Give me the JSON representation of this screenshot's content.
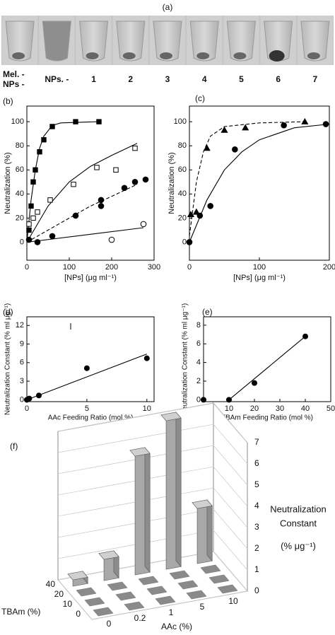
{
  "photo_panel": {
    "label": "(a)",
    "row_labels": [
      "Mel. -",
      "NPs -"
    ],
    "lane_labels": [
      "NPs. -",
      "1",
      "2",
      "3",
      "4",
      "5",
      "6",
      "7"
    ]
  },
  "chart_data": [
    {
      "type": "scatter",
      "panel_label": "(b)",
      "xlabel": "[NPs] (μg ml⁻¹)",
      "ylabel": "Neutralization (%)",
      "xlim": [
        0,
        300
      ],
      "ylim": [
        -15,
        113
      ],
      "xticks": [
        0,
        100,
        200,
        300
      ],
      "yticks": [
        0,
        20,
        40,
        60,
        80,
        100
      ],
      "series": [
        {
          "marker": "square-filled",
          "color": "#000000",
          "x": [
            5,
            10,
            15,
            20,
            30,
            40,
            60,
            115,
            170
          ],
          "values": [
            10,
            30,
            50,
            60,
            75,
            85,
            96,
            100,
            100
          ]
        },
        {
          "marker": "square-open",
          "color": "#000000",
          "x": [
            5,
            15,
            25,
            55,
            110,
            165,
            210,
            255
          ],
          "values": [
            15,
            20,
            25,
            35,
            48,
            62,
            60,
            78
          ]
        },
        {
          "marker": "circle-filled",
          "color": "#000000",
          "x": [
            5,
            25,
            60,
            115,
            175,
            175,
            230,
            255,
            280
          ],
          "values": [
            2,
            0,
            5,
            22,
            30,
            35,
            45,
            50,
            52
          ]
        },
        {
          "marker": "circle-open",
          "color": "#000000",
          "x": [
            200,
            275
          ],
          "values": [
            2,
            15
          ]
        }
      ],
      "fits": [
        {
          "dash": false,
          "x": [
            0,
            10,
            20,
            30,
            40,
            60,
            80,
            170
          ],
          "values": [
            0,
            35,
            60,
            78,
            88,
            97,
            99,
            100
          ]
        },
        {
          "dash": false,
          "x": [
            0,
            50,
            100,
            150,
            200,
            260
          ],
          "values": [
            0,
            30,
            50,
            63,
            72,
            82
          ]
        },
        {
          "dash": true,
          "x": [
            0,
            50,
            100,
            150,
            200,
            260
          ],
          "values": [
            0,
            10,
            20,
            30,
            38,
            48
          ]
        },
        {
          "dash": false,
          "x": [
            0,
            275
          ],
          "values": [
            0,
            12
          ]
        }
      ]
    },
    {
      "type": "scatter",
      "panel_label": "(c)",
      "xlabel": "[NPs] (μg ml⁻¹)",
      "ylabel": "Neutralization (%)",
      "xlim": [
        0,
        200
      ],
      "ylim": [
        -15,
        113
      ],
      "xticks": [
        0,
        100,
        200
      ],
      "yticks": [
        0,
        20,
        40,
        60,
        80,
        100
      ],
      "series": [
        {
          "marker": "circle-filled",
          "color": "#000000",
          "x": [
            0,
            15,
            30,
            65,
            135,
            195
          ],
          "values": [
            0,
            22,
            30,
            77,
            97,
            98
          ]
        },
        {
          "marker": "triangle-filled",
          "color": "#000000",
          "x": [
            2,
            10,
            25,
            50,
            80,
            165
          ],
          "values": [
            23,
            25,
            78,
            93,
            95,
            100
          ]
        }
      ],
      "fits": [
        {
          "dash": false,
          "x": [
            0,
            25,
            50,
            75,
            100,
            150,
            200
          ],
          "values": [
            0,
            35,
            60,
            75,
            85,
            95,
            98
          ]
        },
        {
          "dash": true,
          "x": [
            0,
            10,
            20,
            30,
            50,
            100,
            165
          ],
          "values": [
            5,
            50,
            75,
            88,
            96,
            99,
            100
          ]
        }
      ]
    },
    {
      "type": "scatter",
      "panel_label": "(d)",
      "xlabel": "AAc Feeding Ratio (mol %)",
      "ylabel": "Neutralization Constant (% ml μg⁻¹)",
      "xlim": [
        0,
        10.6
      ],
      "ylim": [
        -0.3,
        13.4
      ],
      "xticks": [
        0,
        5,
        10
      ],
      "yticks": [
        0,
        3,
        6,
        9,
        12
      ],
      "series": [
        {
          "marker": "circle-filled",
          "color": "#000000",
          "x": [
            0,
            0.2,
            1,
            5,
            10
          ],
          "values": [
            0,
            0.2,
            0.7,
            5.1,
            6.7
          ]
        }
      ],
      "fits": [
        {
          "dash": false,
          "x": [
            0,
            10
          ],
          "values": [
            0,
            7.4
          ]
        }
      ]
    },
    {
      "type": "scatter",
      "panel_label": "(e)",
      "xlabel": "TBAm Feeding Ratio (mol %)",
      "ylabel": "Neutralization Constant (% ml μg⁻¹)",
      "xlim": [
        0,
        50
      ],
      "ylim": [
        -0.2,
        8.9
      ],
      "xticks": [
        0,
        10,
        20,
        30,
        40,
        50
      ],
      "yticks": [
        0,
        2,
        4,
        6,
        8
      ],
      "series": [
        {
          "marker": "circle-filled",
          "color": "#000000",
          "x": [
            0,
            10,
            20,
            40
          ],
          "values": [
            0,
            0,
            1.8,
            6.8
          ]
        }
      ],
      "fits": [
        {
          "dash": false,
          "x": [
            10,
            40
          ],
          "values": [
            0,
            6.8
          ]
        }
      ]
    },
    {
      "type": "bar3d",
      "panel_label": "(f)",
      "xlabel": "AAc (%)",
      "ylabel": "TBAm (%)",
      "zlabel": [
        "Neutralization",
        "Constant",
        "(% μg⁻¹)"
      ],
      "x_categories": [
        "0",
        "0.2",
        "1",
        "5",
        "10"
      ],
      "y_categories": [
        "0",
        "10",
        "20",
        "40"
      ],
      "zlim": [
        0,
        7
      ],
      "zticks": [
        0,
        1,
        2,
        3,
        4,
        5,
        6,
        7
      ],
      "color": "#a8a8a8",
      "values": [
        [
          0,
          0,
          0,
          0,
          0
        ],
        [
          0,
          0,
          0,
          0,
          0
        ],
        [
          0,
          0,
          0,
          0,
          0
        ],
        [
          0.3,
          1.0,
          5.6,
          7.0,
          2.6
        ]
      ]
    }
  ]
}
